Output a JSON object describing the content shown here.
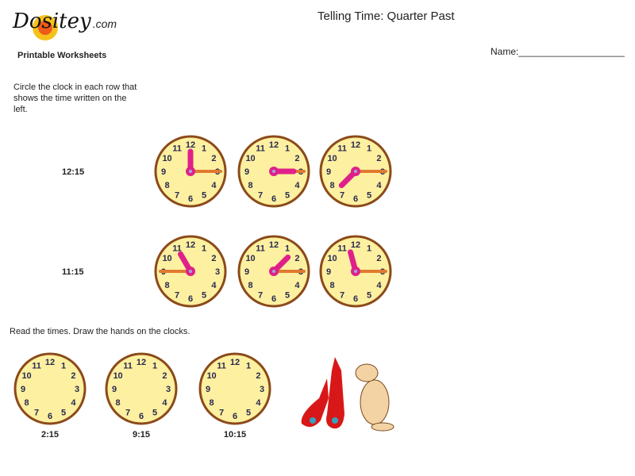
{
  "header": {
    "logo_text": "Dositey",
    "logo_domain": ".com",
    "subtitle": "Printable Worksheets",
    "title": "Telling Time: Quarter Past",
    "name_label": "Name:____________________"
  },
  "section1": {
    "instructions": "Circle the clock in each row that shows the time written on the left.",
    "rows": [
      {
        "time": "12:15",
        "clocks": [
          {
            "hour_hand": 12,
            "minute_hand": 3
          },
          {
            "hour_hand": 3,
            "minute_hand": 3
          },
          {
            "hour_hand": 7.5,
            "minute_hand": 3
          }
        ]
      },
      {
        "time": "11:15",
        "clocks": [
          {
            "hour_hand": 11,
            "minute_hand": 9
          },
          {
            "hour_hand": 1.5,
            "minute_hand": 3
          },
          {
            "hour_hand": 11.5,
            "minute_hand": 3
          }
        ]
      }
    ]
  },
  "section2": {
    "instructions": "Read the times. Draw the hands on the clocks.",
    "clocks": [
      {
        "time": "2:15"
      },
      {
        "time": "9:15"
      },
      {
        "time": "10:15"
      }
    ]
  },
  "colors": {
    "face": "#fdf0a0",
    "rim": "#8b4a1a",
    "hour_hand": "#e0208a",
    "minute_hand": "#e07a30",
    "numbers": "#2a2a50"
  }
}
